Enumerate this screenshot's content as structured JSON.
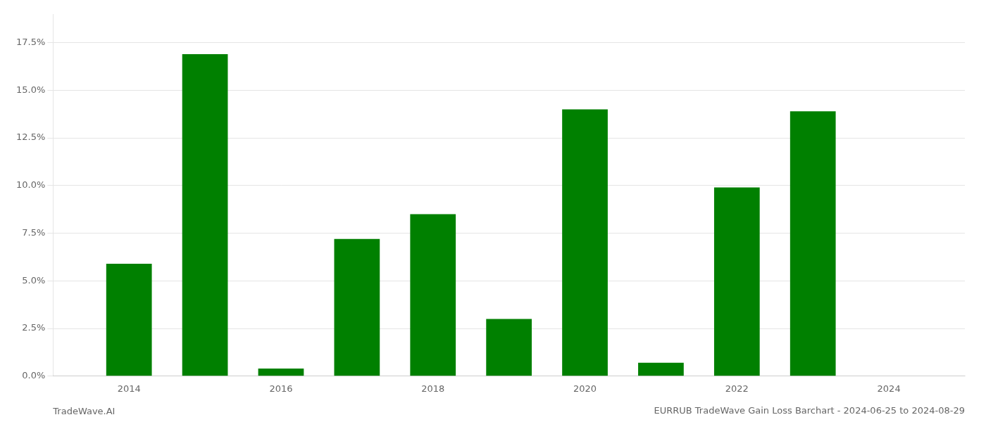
{
  "chart_data": {
    "type": "bar",
    "title": "EURRUB TradeWave Gain Loss Barchart - 2024-06-25 to 2024-08-29",
    "annotations": [
      "TradeWave.AI"
    ],
    "x": [
      2014,
      2015,
      2016,
      2017,
      2018,
      2019,
      2020,
      2021,
      2022,
      2023,
      2024
    ],
    "values": [
      0.059,
      0.169,
      0.004,
      0.072,
      0.085,
      0.03,
      0.14,
      0.007,
      0.099,
      0.139,
      0.0
    ],
    "color": "#008000",
    "xlim": [
      2013.0,
      2025.0
    ],
    "xticks": [
      2014,
      2016,
      2018,
      2020,
      2022,
      2024
    ],
    "ylim": [
      0.0,
      0.19
    ],
    "yticks": [
      {
        "value": 0.0,
        "label": "0.0%"
      },
      {
        "value": 0.025,
        "label": "2.5%"
      },
      {
        "value": 0.05,
        "label": "5.0%"
      },
      {
        "value": 0.075,
        "label": "7.5%"
      },
      {
        "value": 0.1,
        "label": "10.0%"
      },
      {
        "value": 0.125,
        "label": "12.5%"
      },
      {
        "value": 0.15,
        "label": "15.0%"
      },
      {
        "value": 0.175,
        "label": "17.5%"
      }
    ],
    "grid": true
  }
}
